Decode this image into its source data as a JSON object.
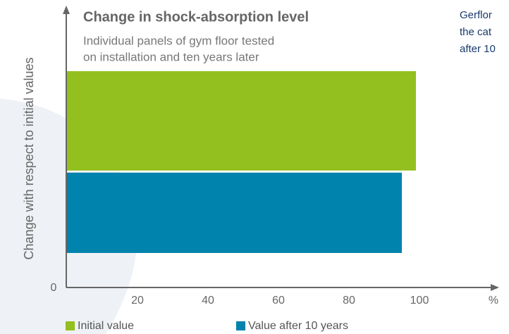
{
  "chart_data": {
    "type": "barh",
    "title": "Change in shock-absorption level",
    "subtitle": [
      "Individual panels of gym floor tested",
      "on installation and ten years later"
    ],
    "ylabel": "Change with respect to initial values",
    "xlabel": "%",
    "annotation": [
      "Gerflor",
      "the cat",
      "after 10"
    ],
    "series": [
      {
        "name": "Initial value",
        "color": "#93c01f",
        "values": [
          99
        ]
      },
      {
        "name": "Value after 10 years",
        "color": "#0083ad",
        "values": [
          95
        ]
      }
    ],
    "xlim": [
      0,
      122
    ],
    "xticks": [
      0,
      20,
      40,
      60,
      80,
      100
    ],
    "grid": false
  }
}
